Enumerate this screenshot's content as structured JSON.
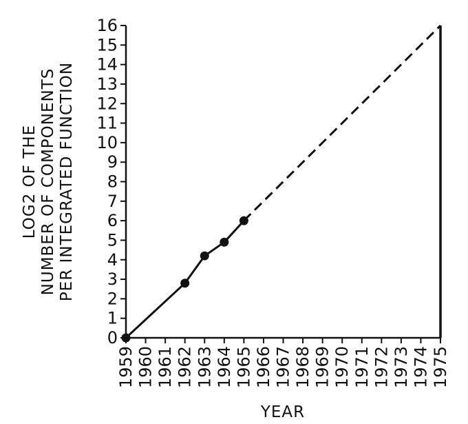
{
  "chart_data": {
    "type": "line",
    "title": "",
    "xlabel": "YEAR",
    "ylabel_lines": [
      "LOG2 OF THE",
      "NUMBER OF COMPONENTS",
      "PER INTEGRATED FUNCTION"
    ],
    "xlim": [
      1959,
      1975
    ],
    "ylim": [
      0,
      16
    ],
    "x_ticks": [
      1959,
      1960,
      1961,
      1962,
      1963,
      1964,
      1965,
      1966,
      1967,
      1968,
      1969,
      1970,
      1971,
      1972,
      1973,
      1974,
      1975
    ],
    "y_ticks": [
      0,
      1,
      2,
      3,
      4,
      5,
      6,
      7,
      8,
      9,
      10,
      11,
      12,
      13,
      14,
      15,
      16
    ],
    "grid": false,
    "series": [
      {
        "style": "solid",
        "markers": true,
        "points": [
          {
            "x": 1959,
            "y": 0
          },
          {
            "x": 1962,
            "y": 2.8
          },
          {
            "x": 1963,
            "y": 4.2
          },
          {
            "x": 1964,
            "y": 4.9
          },
          {
            "x": 1965,
            "y": 6
          }
        ]
      },
      {
        "style": "dashed",
        "markers": false,
        "points": [
          {
            "x": 1965,
            "y": 6
          },
          {
            "x": 1975,
            "y": 16
          }
        ]
      }
    ],
    "line_color": "#111111"
  }
}
